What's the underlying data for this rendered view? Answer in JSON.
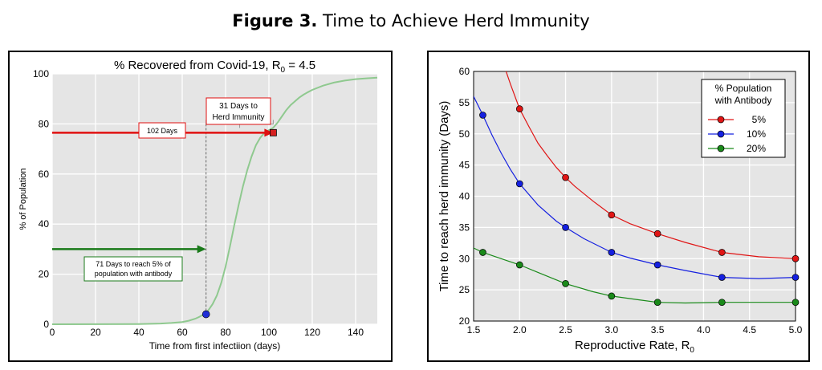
{
  "figure": {
    "label": "Figure 3.",
    "title": "Time to Achieve Herd Immunity"
  },
  "chart_data": [
    {
      "type": "line",
      "title": "% Recovered from Covid-19, R",
      "title_subscript": "0",
      "title_suffix": " = 4.5",
      "xlabel": "Time from first infectiion (days)",
      "ylabel": "% of Population",
      "xlim": [
        0,
        150
      ],
      "ylim": [
        0,
        100
      ],
      "xticks": [
        0,
        20,
        40,
        60,
        80,
        100,
        120,
        140
      ],
      "yticks": [
        0,
        20,
        40,
        60,
        80,
        100
      ],
      "grid": true,
      "series": [
        {
          "color": "#8fc98f",
          "x": [
            0,
            40,
            50,
            55,
            60,
            63,
            66,
            68,
            70,
            72,
            74,
            76,
            78,
            80,
            82,
            84,
            86,
            88,
            90,
            92,
            94,
            96,
            98,
            100,
            102,
            104,
            106,
            108,
            110,
            112,
            114,
            116,
            118,
            120,
            125,
            130,
            135,
            140,
            145,
            150
          ],
          "y": [
            0,
            0.1,
            0.3,
            0.5,
            0.9,
            1.4,
            2.2,
            3.0,
            4.0,
            5.5,
            8.0,
            11.5,
            16.5,
            23,
            31,
            39.5,
            47.5,
            55,
            61.5,
            67,
            71.5,
            74.5,
            76.5,
            77.5,
            78.5,
            80.5,
            83,
            85.5,
            87.5,
            89,
            90.5,
            91.7,
            92.7,
            93.6,
            95.3,
            96.5,
            97.3,
            97.9,
            98.2,
            98.5
          ]
        }
      ],
      "markers": [
        {
          "x": 71,
          "y": 4,
          "shape": "circle",
          "color": "#1f2fd6"
        },
        {
          "x": 102,
          "y": 76.5,
          "shape": "square",
          "color": "#d62020"
        }
      ],
      "arrows": [
        {
          "x_from": 0,
          "x_to": 102,
          "y": 76.5,
          "color": "#e01010"
        },
        {
          "x_from": 0,
          "x_to": 71,
          "y": 30,
          "color": "#1a7a1a"
        }
      ],
      "dashed_line": {
        "x": 71,
        "y_from": 4,
        "y_to": 80
      },
      "annotations": {
        "red_box": "102 Days",
        "bracket_box_line1": "31 Days to",
        "bracket_box_line2": "Herd Immunity",
        "green_box_line1": "71 Days to reach 5% of",
        "green_box_line2": "population with antibody"
      },
      "colors": {
        "plot_bg": "#e5e5e5",
        "red_box_border": "#e01010",
        "green_box_border": "#1a7a1a"
      }
    },
    {
      "type": "line",
      "title": "",
      "xlabel": "Reproductive Rate, R",
      "xlabel_subscript": "0",
      "ylabel": "Time to reach herd immunity (Days)",
      "xlim": [
        1.5,
        5.0
      ],
      "ylim": [
        20,
        60
      ],
      "xticks": [
        1.5,
        2.0,
        2.5,
        3.0,
        3.5,
        4.0,
        4.5,
        5.0
      ],
      "xtick_labels": [
        "1.5",
        "2.0",
        "2.5",
        "3.0",
        "3.5",
        "4.0",
        "4.5",
        "5.0"
      ],
      "yticks": [
        20,
        25,
        30,
        35,
        40,
        45,
        50,
        55,
        60
      ],
      "grid": true,
      "legend": {
        "title_line1": "% Population",
        "title_line2": "with Antibody",
        "position": "top-right"
      },
      "series": [
        {
          "name": "5%",
          "color": "#e01515",
          "x": [
            1.6,
            2.0,
            2.5,
            3.0,
            3.5,
            4.2,
            5.0
          ],
          "y": [
            64,
            54,
            43,
            37,
            34,
            31,
            30
          ],
          "marker_start": 1,
          "curve_x": [
            1.83,
            1.9,
            2.0,
            2.1,
            2.2,
            2.3,
            2.4,
            2.5,
            2.6,
            2.8,
            3.0,
            3.2,
            3.5,
            3.8,
            4.2,
            4.6,
            5.0
          ],
          "curve_y": [
            61,
            58,
            54,
            51.2,
            48.5,
            46.5,
            44.6,
            43,
            41.6,
            39.2,
            37,
            35.6,
            34,
            32.6,
            31,
            30.3,
            30
          ]
        },
        {
          "name": "10%",
          "color": "#1520e0",
          "x": [
            1.6,
            2.0,
            2.5,
            3.0,
            3.5,
            4.2,
            5.0
          ],
          "y": [
            53,
            42,
            35,
            31,
            29,
            27,
            27
          ],
          "marker_start": 0,
          "curve_x": [
            1.5,
            1.6,
            1.7,
            1.8,
            1.9,
            2.0,
            2.2,
            2.4,
            2.5,
            2.7,
            3.0,
            3.2,
            3.5,
            3.8,
            4.2,
            4.6,
            5.0
          ],
          "curve_y": [
            56,
            53,
            49.8,
            46.9,
            44.3,
            42,
            38.6,
            36,
            35,
            33.2,
            31,
            30.1,
            29,
            28.1,
            27,
            26.8,
            27
          ]
        },
        {
          "name": "20%",
          "color": "#1a8a1a",
          "x": [
            1.6,
            2.0,
            2.5,
            3.0,
            3.5,
            4.2,
            5.0
          ],
          "y": [
            31,
            29,
            26,
            24,
            23,
            23,
            23
          ],
          "marker_start": 0,
          "curve_x": [
            1.5,
            1.6,
            1.8,
            2.0,
            2.2,
            2.5,
            2.8,
            3.0,
            3.3,
            3.5,
            3.8,
            4.2,
            4.6,
            5.0
          ],
          "curve_y": [
            31.7,
            31,
            30,
            29,
            27.8,
            26,
            24.7,
            24,
            23.4,
            23,
            22.9,
            23,
            23,
            23
          ]
        }
      ],
      "colors": {
        "plot_bg": "#e5e5e5"
      }
    }
  ]
}
